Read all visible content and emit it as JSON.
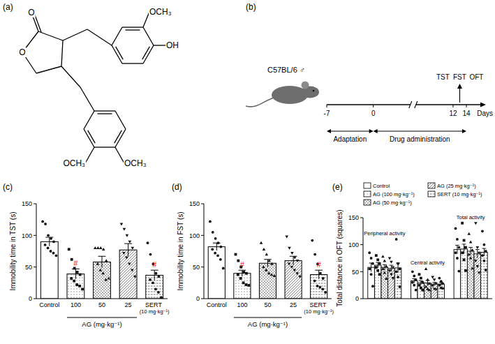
{
  "panels": [
    "(a)",
    "(b)",
    "(c)",
    "(d)",
    "(e)"
  ],
  "structure": {
    "labels": [
      "O",
      "O",
      "OCH₃",
      "OH",
      "OCH₃",
      "OCH₃"
    ]
  },
  "timeline": {
    "strain": "C57BL/6 ♂",
    "days": [
      -7,
      0,
      12,
      14
    ],
    "unit": "Days",
    "tests": [
      "TST",
      "FST",
      "OFT"
    ],
    "phases": [
      {
        "label": "Adaptation",
        "from": -7,
        "to": 0
      },
      {
        "label": "Drug administration",
        "from": 0,
        "to": 14
      }
    ]
  },
  "chart_data": [
    {
      "type": "bar",
      "y_label": "Immobility time in TST (s)",
      "categories": [
        "Control",
        "100",
        "50",
        "25",
        "SERT (10 mg·kg⁻¹)"
      ],
      "values": [
        90,
        39,
        58,
        77,
        37
      ],
      "errors": [
        7,
        8,
        9,
        10,
        8
      ],
      "points": [
        [
          122,
          118,
          100,
          95,
          90,
          85,
          80,
          75,
          72,
          68
        ],
        [
          78,
          62,
          48,
          42,
          38,
          32,
          28,
          22,
          20,
          15
        ],
        [
          80,
          80,
          80,
          78,
          60,
          55,
          45,
          40,
          30,
          32
        ],
        [
          118,
          110,
          100,
          90,
          80,
          72,
          65,
          55,
          45,
          35
        ],
        [
          88,
          70,
          55,
          40,
          35,
          30,
          25,
          15,
          10,
          2
        ]
      ],
      "color": "#ffffff",
      "ylim": [
        0,
        150
      ],
      "yticks": [
        0,
        50,
        100,
        150
      ],
      "group_label": "AG (mg·kg⁻¹)",
      "group_categories": [
        "100",
        "50",
        "25"
      ],
      "annotations": [
        {
          "category": "100",
          "text": "#",
          "color": "#ff0000"
        },
        {
          "category": "SERT (10 mg·kg⁻¹)",
          "text": "#",
          "color": "#ff0000"
        }
      ]
    },
    {
      "type": "bar",
      "y_label": "Immobility time in FST (s)",
      "categories": [
        "Control",
        "100",
        "50",
        "25",
        "SERT (10 mg·kg⁻¹)"
      ],
      "values": [
        82,
        40,
        56,
        60,
        38
      ],
      "errors": [
        6,
        5,
        6,
        7,
        7
      ],
      "points": [
        [
          122,
          105,
          95,
          88,
          82,
          78,
          72,
          68,
          62,
          48
        ],
        [
          70,
          60,
          50,
          42,
          40,
          38,
          32,
          25,
          22,
          21
        ],
        [
          88,
          78,
          70,
          60,
          55,
          50,
          45,
          40,
          38,
          36
        ],
        [
          98,
          80,
          72,
          65,
          60,
          55,
          50,
          45,
          40,
          35
        ],
        [
          92,
          70,
          55,
          40,
          32,
          28,
          20,
          18,
          15,
          10
        ]
      ],
      "color": "#ffffff",
      "ylim": [
        0,
        150
      ],
      "yticks": [
        0,
        50,
        100,
        150
      ],
      "group_label": "AG (mg·kg⁻¹)",
      "group_categories": [
        "100",
        "50",
        "25"
      ],
      "annotations": [
        {
          "category": "100",
          "text": "#",
          "color": "#ff0000"
        },
        {
          "category": "SERT (10 mg·kg⁻¹)",
          "text": "#",
          "color": "#ff0000"
        }
      ]
    },
    {
      "type": "bar",
      "y_label": "Total distance in OFT (squares)",
      "categories": [
        "Peripheral activity",
        "Central activity",
        "Total activity"
      ],
      "series": [
        {
          "name": "Control",
          "color": "#ffffff",
          "values": [
            58,
            33,
            91
          ],
          "errors": [
            8,
            4,
            8
          ],
          "points": [
            [
              85,
              75,
              65,
              55,
              45,
              23
            ],
            [
              50,
              42,
              35,
              30,
              25,
              16
            ],
            [
              130,
              110,
              95,
              85,
              75,
              51
            ]
          ]
        },
        {
          "name": "AG (100 mg·kg⁻¹)",
          "color": "#ffffff",
          "values": [
            62,
            29,
            92
          ],
          "errors": [
            5,
            4,
            9
          ],
          "points": [
            [
              80,
              72,
              65,
              58,
              52,
              45
            ],
            [
              45,
              38,
              30,
              25,
              20,
              16
            ],
            [
              140,
              108,
              95,
              85,
              72,
              52
            ]
          ]
        },
        {
          "name": "AG (50 mg·kg⁻¹)",
          "color": "#ffffff",
          "values": [
            58,
            29,
            88
          ],
          "errors": [
            5,
            5,
            7
          ],
          "points": [
            [
              78,
              70,
              60,
              55,
              48,
              37
            ],
            [
              55,
              35,
              28,
              22,
              18,
              16
            ],
            [
              120,
              105,
              90,
              82,
              75,
              56
            ]
          ]
        },
        {
          "name": "AG (25 mg·kg⁻¹)",
          "color": "#ffffff",
          "values": [
            56,
            27,
            83
          ],
          "errors": [
            6,
            3,
            8
          ],
          "points": [
            [
              75,
              68,
              58,
              52,
              45,
              38
            ],
            [
              40,
              35,
              28,
              24,
              18,
              17
            ],
            [
              140,
              95,
              85,
              70,
              60,
              48
            ]
          ]
        },
        {
          "name": "SERT (10 mg·kg⁻¹)",
          "color": "#ffffff",
          "values": [
            57,
            27,
            86
          ],
          "errors": [
            9,
            3,
            7
          ],
          "points": [
            [
              110,
              65,
              55,
              50,
              40,
              22
            ],
            [
              38,
              32,
              28,
              25,
              20,
              19
            ],
            [
              125,
              100,
              88,
              80,
              70,
              53
            ]
          ]
        }
      ],
      "ylim": [
        0,
        150
      ],
      "yticks": [
        0,
        50,
        100,
        150
      ],
      "legend": "upper right"
    }
  ]
}
